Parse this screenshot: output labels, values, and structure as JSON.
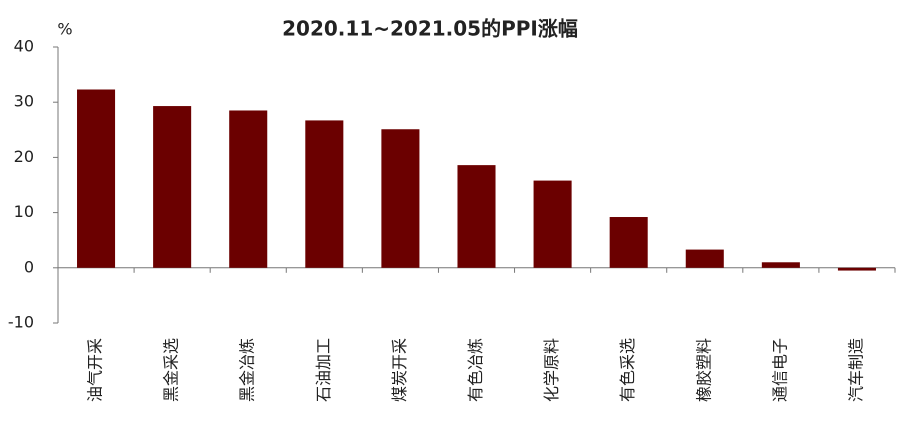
{
  "chart_data": {
    "type": "bar",
    "title": "2020.11~2021.05的PPI涨幅",
    "y_unit": "%",
    "categories": [
      "油气开采",
      "黑金采选",
      "黑金冶炼",
      "石油加工",
      "煤炭开采",
      "有色冶炼",
      "化学原料",
      "有色采选",
      "橡胶塑料",
      "通信电子",
      "汽车制造"
    ],
    "values": [
      32.3,
      29.3,
      28.5,
      26.7,
      25.1,
      18.6,
      15.8,
      9.2,
      3.3,
      1.0,
      -0.5
    ],
    "color": "#6b0000",
    "ylim": [
      -10,
      40
    ],
    "yticks": [
      -10,
      0,
      10,
      20,
      30,
      40
    ],
    "grid": false
  }
}
